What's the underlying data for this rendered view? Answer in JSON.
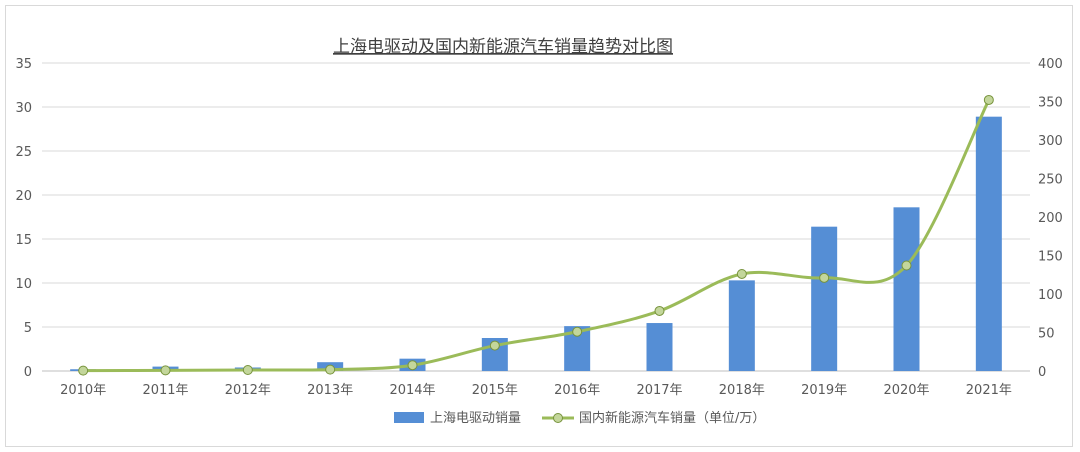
{
  "chart_data": {
    "type": "bar+line",
    "title": "上海电驱动及国内新能源汽车销量趋势对比图",
    "categories": [
      "2010年",
      "2011年",
      "2012年",
      "2013年",
      "2014年",
      "2015年",
      "2016年",
      "2017年",
      "2018年",
      "2019年",
      "2020年",
      "2021年"
    ],
    "series": [
      {
        "name": "上海电驱动销量",
        "type": "bar",
        "axis": "left",
        "color": "#558ed5",
        "values": [
          0.2,
          0.5,
          0.4,
          1.0,
          1.4,
          3.75,
          5.1,
          5.45,
          10.3,
          16.4,
          18.6,
          28.9
        ]
      },
      {
        "name": "国内新能源汽车销量（单位/万）",
        "type": "line",
        "axis": "right",
        "color": "#9bbb59",
        "values": [
          0.5,
          0.8,
          1.3,
          1.8,
          7.5,
          33,
          51,
          78,
          126,
          121,
          137,
          352
        ]
      }
    ],
    "y_left": {
      "min": 0,
      "max": 35,
      "ticks": [
        "0",
        "5",
        "10",
        "15",
        "20",
        "25",
        "30",
        "35"
      ]
    },
    "y_right": {
      "min": 0,
      "max": 400,
      "ticks": [
        "0",
        "50",
        "100",
        "150",
        "200",
        "250",
        "300",
        "350",
        "400"
      ]
    },
    "grid": true,
    "legend": "bottom"
  }
}
